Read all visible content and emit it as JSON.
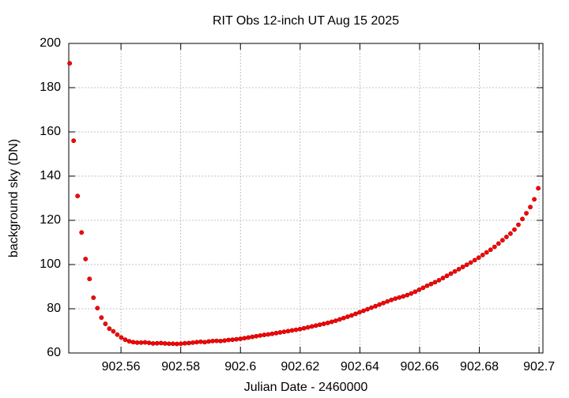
{
  "chart_data": {
    "type": "scatter",
    "title": "RIT Obs 12-inch UT Aug 15 2025",
    "xlabel": "Julian Date - 2460000",
    "ylabel": "background sky (DN)",
    "color": "#ff0000",
    "grid": true,
    "xlim": [
      902.5425,
      902.7013
    ],
    "ylim": [
      60,
      200
    ],
    "xticks": [
      902.56,
      902.58,
      902.6,
      902.62,
      902.64,
      902.66,
      902.68,
      902.7
    ],
    "yticks": [
      60,
      80,
      100,
      120,
      140,
      160,
      180,
      200
    ],
    "x": [
      902.5428,
      902.54413,
      902.54546,
      902.54679,
      902.54812,
      902.54945,
      902.55078,
      902.55211,
      902.55344,
      902.55477,
      902.5561,
      902.55743,
      902.55876,
      902.56009,
      902.56142,
      902.56275,
      902.56408,
      902.56541,
      902.56674,
      902.56807,
      902.5694,
      902.57073,
      902.57206,
      902.57339,
      902.57472,
      902.57605,
      902.57738,
      902.57871,
      902.58004,
      902.58137,
      902.5827,
      902.58403,
      902.58536,
      902.58669,
      902.58802,
      902.58935,
      902.59068,
      902.59201,
      902.59334,
      902.59467,
      902.596,
      902.59733,
      902.59866,
      902.59999,
      902.60132,
      902.60265,
      902.60398,
      902.60531,
      902.60664,
      902.60797,
      902.6093,
      902.61063,
      902.61196,
      902.61329,
      902.61462,
      902.61595,
      902.61728,
      902.61861,
      902.61994,
      902.62127,
      902.6226,
      902.62393,
      902.62526,
      902.62659,
      902.62792,
      902.62925,
      902.63058,
      902.63191,
      902.63324,
      902.63457,
      902.6359,
      902.63723,
      902.63856,
      902.63989,
      902.64122,
      902.64255,
      902.64388,
      902.64521,
      902.64654,
      902.64787,
      902.6492,
      902.65053,
      902.65186,
      902.65319,
      902.65452,
      902.65585,
      902.65718,
      902.65851,
      902.65984,
      902.66117,
      902.6625,
      902.66383,
      902.66516,
      902.66649,
      902.66782,
      902.66915,
      902.67048,
      902.67181,
      902.67314,
      902.67447,
      902.6758,
      902.67713,
      902.67846,
      902.67979,
      902.68112,
      902.68245,
      902.68378,
      902.68511,
      902.68644,
      902.68777,
      902.6891,
      902.69043,
      902.69176,
      902.69309,
      902.69442,
      902.69575,
      902.69708,
      902.69841,
      902.69974
    ],
    "values": [
      191,
      156,
      131,
      114.5,
      102.5,
      93.5,
      85,
      80.3,
      76,
      73.2,
      71,
      69.8,
      68.3,
      67,
      66,
      65.3,
      64.9,
      64.7,
      64.7,
      64.8,
      64.6,
      64.3,
      64.4,
      64.5,
      64.3,
      64.2,
      64.2,
      64.1,
      64.2,
      64.4,
      64.5,
      64.7,
      64.9,
      65.1,
      64.9,
      65.2,
      65.4,
      65.5,
      65.4,
      65.6,
      65.9,
      66.0,
      66.2,
      66.4,
      66.7,
      67.0,
      67.3,
      67.6,
      67.9,
      68.2,
      68.4,
      68.7,
      69.0,
      69.3,
      69.6,
      69.9,
      70.2,
      70.5,
      70.8,
      71.2,
      71.6,
      72.0,
      72.4,
      72.8,
      73.2,
      73.6,
      74.1,
      74.6,
      75.2,
      75.8,
      76.4,
      77.0,
      77.7,
      78.4,
      79.1,
      79.8,
      80.5,
      81.2,
      81.9,
      82.6,
      83.3,
      84.0,
      84.6,
      85.1,
      85.6,
      86.2,
      86.9,
      87.7,
      88.6,
      89.5,
      90.4,
      91.2,
      92.0,
      92.9,
      93.9,
      94.9,
      95.9,
      96.9,
      97.9,
      98.9,
      99.9,
      100.9,
      102.0,
      103.1,
      104.3,
      105.5,
      106.7,
      108.0,
      109.5,
      111.0,
      112.5,
      114.0,
      115.8,
      118.0,
      120.6,
      123.2,
      126.0,
      129.5,
      134.5
    ]
  }
}
